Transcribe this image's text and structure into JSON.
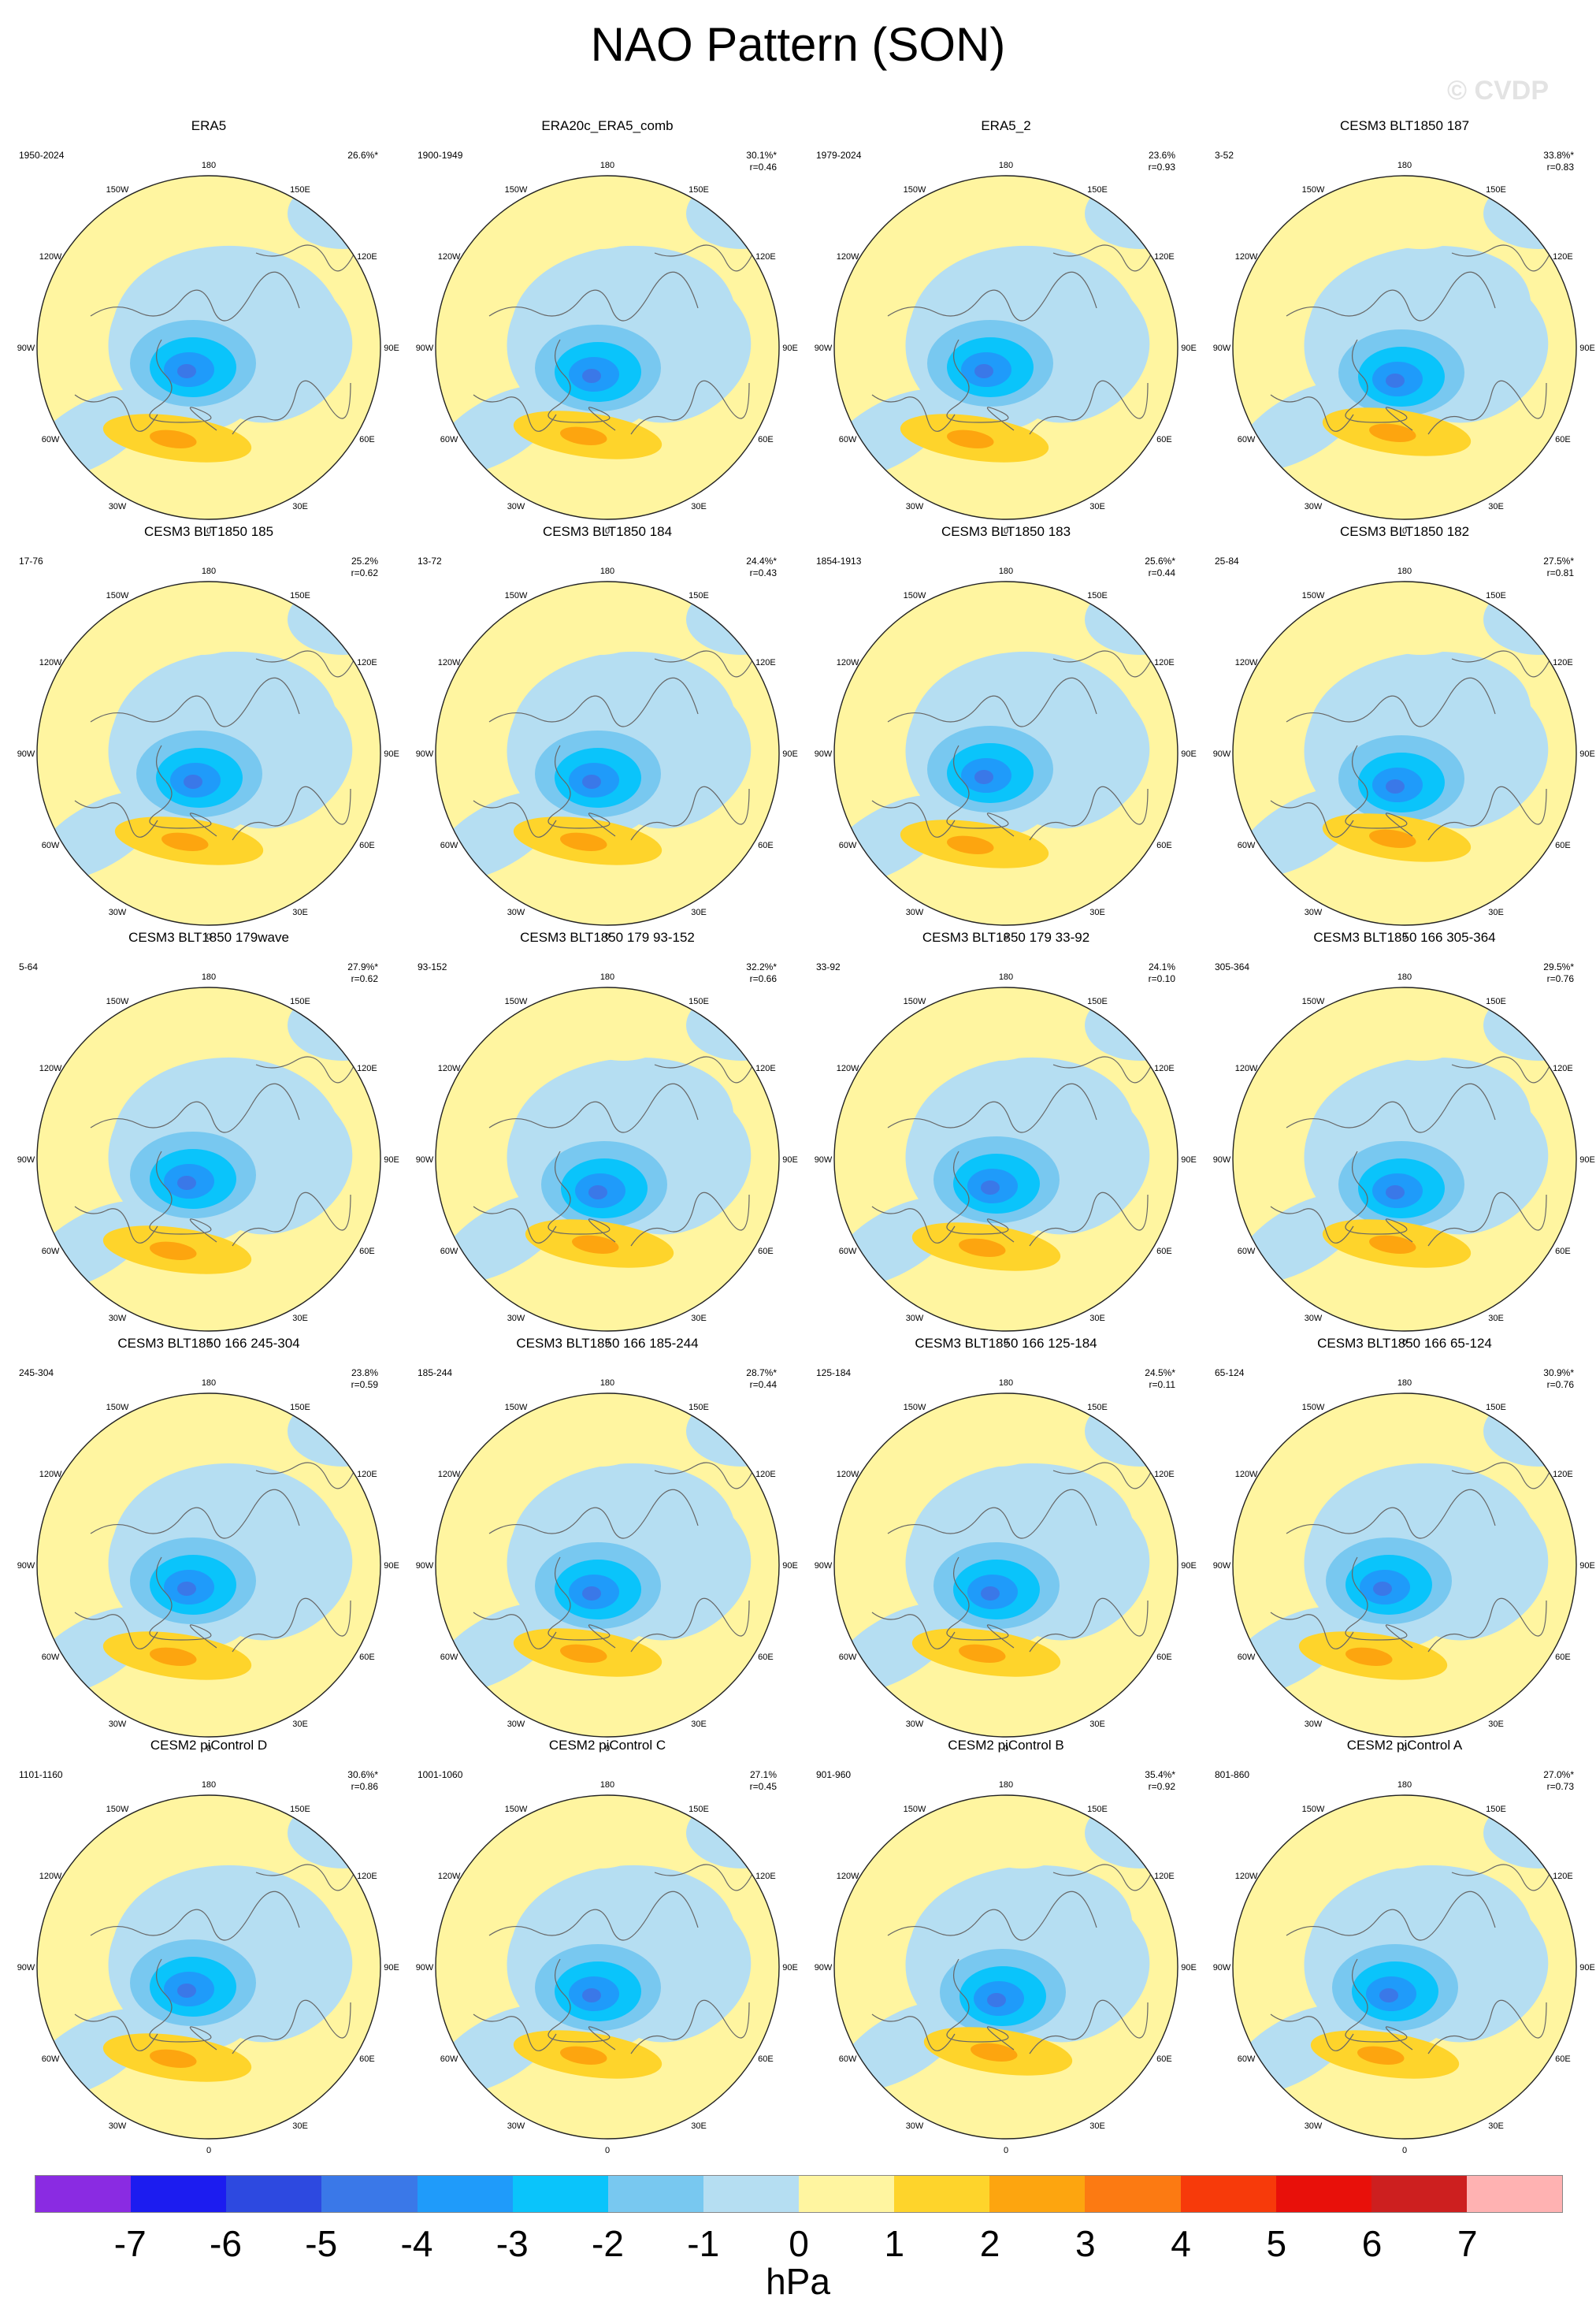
{
  "title": "NAO Pattern (SON)",
  "watermark": "© CVDP",
  "units": "hPa",
  "lon_labels": [
    "180",
    "150E",
    "120E",
    "90E",
    "60E",
    "30E",
    "0",
    "30W",
    "60W",
    "90W",
    "120W",
    "150W"
  ],
  "colorbar": {
    "ticks": [
      "-7",
      "-6",
      "-5",
      "-4",
      "-3",
      "-2",
      "-1",
      "0",
      "1",
      "2",
      "3",
      "4",
      "5",
      "6",
      "7"
    ],
    "colors": [
      "#8a2be2",
      "#1c1cf0",
      "#2d49e0",
      "#3a78e8",
      "#1f9bfa",
      "#0ac4fb",
      "#78c8f0",
      "#b5def2",
      "#fff5a0",
      "#fed42b",
      "#fda50f",
      "#fc7a12",
      "#f73a0a",
      "#e8100a",
      "#cd1f1f",
      "#ffb2b2"
    ]
  },
  "panels": [
    {
      "title": "ERA5",
      "years": "1950-2024",
      "var": "26.6%*",
      "r": "",
      "style": 0
    },
    {
      "title": "ERA20c_ERA5_comb",
      "years": "1900-1949",
      "var": "30.1%*",
      "r": "r=0.46",
      "style": 1
    },
    {
      "title": "ERA5_2",
      "years": "1979-2024",
      "var": "23.6%",
      "r": "r=0.93",
      "style": 0
    },
    {
      "title": "CESM3 BLT1850 187",
      "years": "3-52",
      "var": "33.8%*",
      "r": "r=0.83",
      "style": 2
    },
    {
      "title": "CESM3 BLT1850 185",
      "years": "17-76",
      "var": "25.2%",
      "r": "r=0.62",
      "style": 1
    },
    {
      "title": "CESM3 BLT1850 184",
      "years": "13-72",
      "var": "24.4%*",
      "r": "r=0.43",
      "style": 1
    },
    {
      "title": "CESM3 BLT1850 183",
      "years": "1854-1913",
      "var": "25.6%*",
      "r": "r=0.44",
      "style": 0
    },
    {
      "title": "CESM3 BLT1850 182",
      "years": "25-84",
      "var": "27.5%*",
      "r": "r=0.81",
      "style": 2
    },
    {
      "title": "CESM3 BLT1850 179wave",
      "years": "5-64",
      "var": "27.9%*",
      "r": "r=0.62",
      "style": 0
    },
    {
      "title": "CESM3 BLT1850 179 93-152",
      "years": "93-152",
      "var": "32.2%*",
      "r": "r=0.66",
      "style": 2
    },
    {
      "title": "CESM3 BLT1850 179 33-92",
      "years": "33-92",
      "var": "24.1%",
      "r": "r=0.10",
      "style": 1
    },
    {
      "title": "CESM3 BLT1850 166 305-364",
      "years": "305-364",
      "var": "29.5%*",
      "r": "r=0.76",
      "style": 2
    },
    {
      "title": "CESM3 BLT1850 166 245-304",
      "years": "245-304",
      "var": "23.8%",
      "r": "r=0.59",
      "style": 0
    },
    {
      "title": "CESM3 BLT1850 166 185-244",
      "years": "185-244",
      "var": "28.7%*",
      "r": "r=0.44",
      "style": 1
    },
    {
      "title": "CESM3 BLT1850 166 125-184",
      "years": "125-184",
      "var": "24.5%*",
      "r": "r=0.11",
      "style": 1
    },
    {
      "title": "CESM3 BLT1850 166 65-124",
      "years": "65-124",
      "var": "30.9%*",
      "r": "r=0.76",
      "style": 0
    },
    {
      "title": "CESM2 piControl D",
      "years": "1101-1160",
      "var": "30.6%*",
      "r": "r=0.86",
      "style": 0
    },
    {
      "title": "CESM2 piControl C",
      "years": "1001-1060",
      "var": "27.1%",
      "r": "r=0.45",
      "style": 1
    },
    {
      "title": "CESM2 piControl B",
      "years": "901-960",
      "var": "35.4%*",
      "r": "r=0.92",
      "style": 2
    },
    {
      "title": "CESM2 piControl A",
      "years": "801-860",
      "var": "27.0%*",
      "r": "r=0.73",
      "style": 1
    }
  ]
}
